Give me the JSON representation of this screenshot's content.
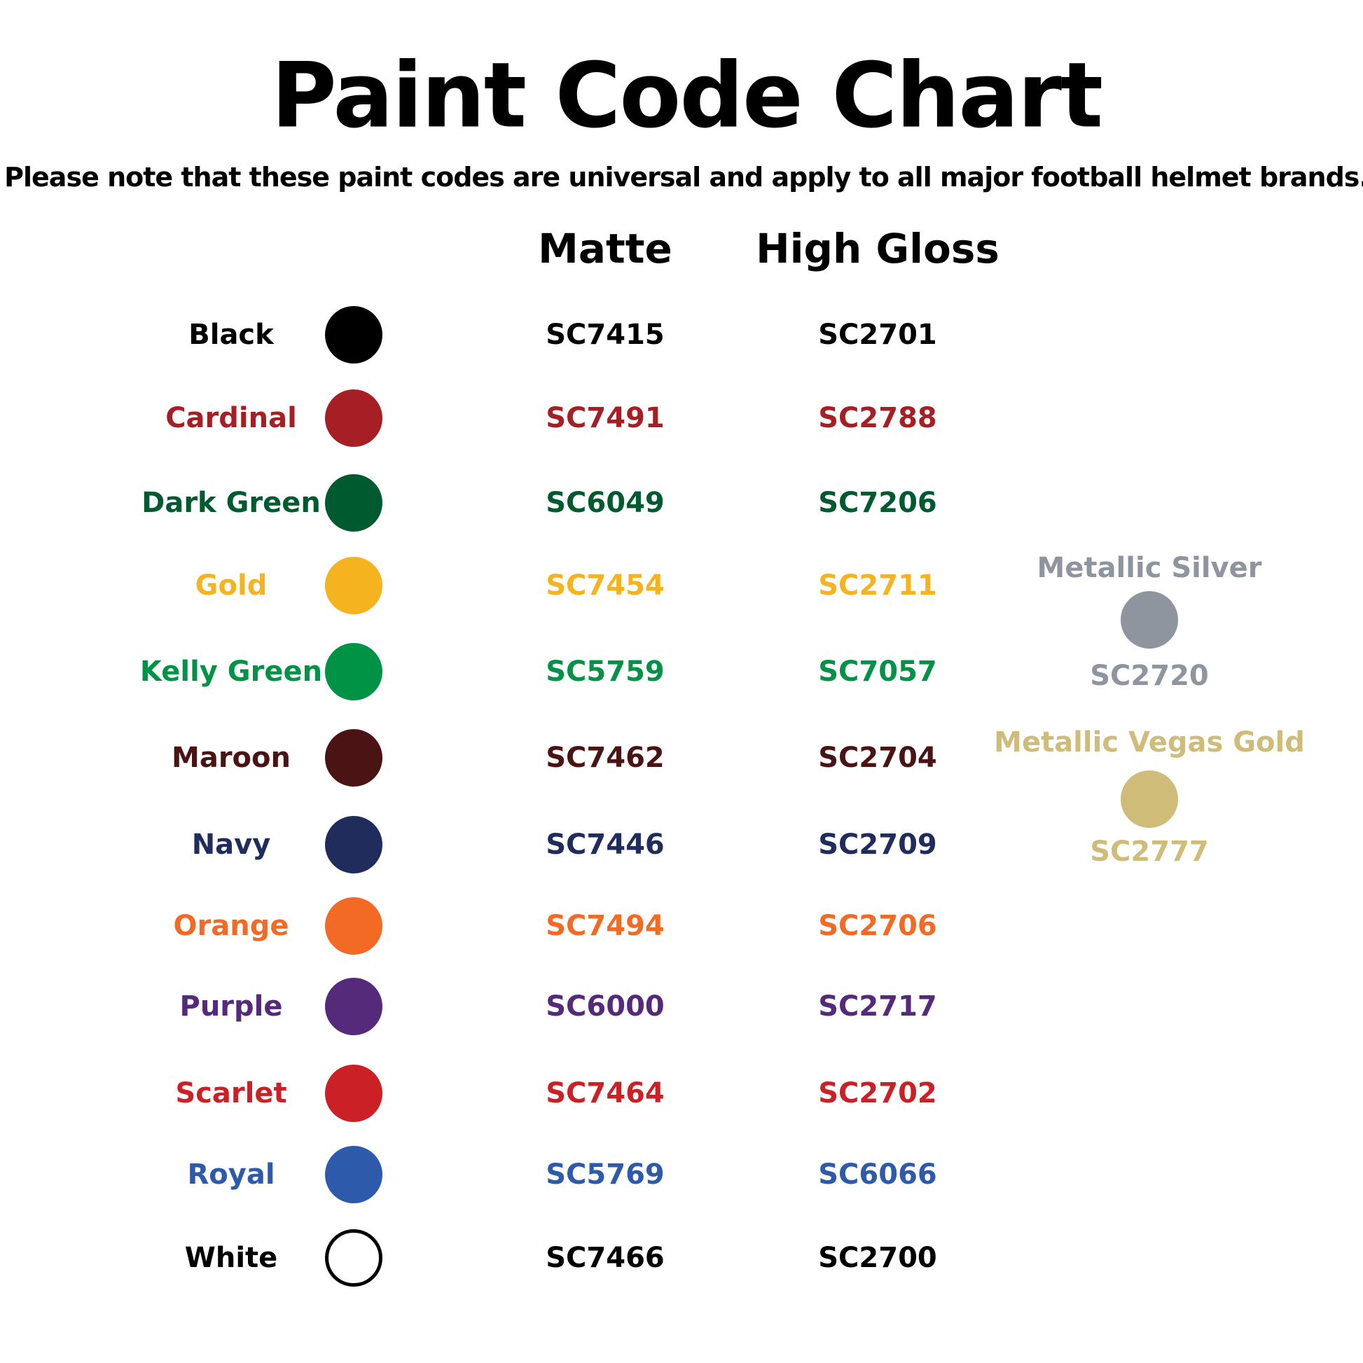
{
  "title": "Paint Code Chart",
  "subtitle": "Please note that these paint codes are universal and apply to all major football helmet brands.",
  "headers": {
    "matte": "Matte",
    "gloss": "High Gloss"
  },
  "colors": [
    {
      "name": "Black",
      "color": "#000000",
      "text_color": "#000000",
      "matte": "SC7415",
      "gloss": "SC2701"
    },
    {
      "name": "Cardinal",
      "color": "#A51F24",
      "text_color": "#A51F24",
      "matte": "SC7491",
      "gloss": "SC2788"
    },
    {
      "name": "Dark Green",
      "color": "#005A30",
      "text_color": "#005A30",
      "matte": "SC6049",
      "gloss": "SC7206"
    },
    {
      "name": "Gold",
      "color": "#F5B31F",
      "text_color": "#F5B31F",
      "matte": "SC7454",
      "gloss": "SC2711"
    },
    {
      "name": "Kelly Green",
      "color": "#009245",
      "text_color": "#009245",
      "matte": "SC5759",
      "gloss": "SC7057"
    },
    {
      "name": "Maroon",
      "color": "#4A1414",
      "text_color": "#4A1414",
      "matte": "SC7462",
      "gloss": "SC2704"
    },
    {
      "name": "Navy",
      "color": "#1F2C5C",
      "text_color": "#1F2C5C",
      "matte": "SC7446",
      "gloss": "SC2709"
    },
    {
      "name": "Orange",
      "color": "#F26A23",
      "text_color": "#F26A23",
      "matte": "SC7494",
      "gloss": "SC2706"
    },
    {
      "name": "Purple",
      "color": "#562A7A",
      "text_color": "#562A7A",
      "matte": "SC6000",
      "gloss": "SC2717"
    },
    {
      "name": "Scarlet",
      "color": "#CC2027",
      "text_color": "#CC2027",
      "matte": "SC7464",
      "gloss": "SC2702"
    },
    {
      "name": "Royal",
      "color": "#2E5AAC",
      "text_color": "#2E5AAC",
      "matte": "SC5769",
      "gloss": "SC6066"
    },
    {
      "name": "White",
      "color": "#FFFFFF",
      "text_color": "#000000",
      "matte": "SC7466",
      "gloss": "SC2700"
    }
  ],
  "metallics": [
    {
      "name": "Metallic Silver",
      "color": "#8F959E",
      "code": "SC2720"
    },
    {
      "name": "Metallic Vegas Gold",
      "color": "#CFBC78",
      "code": "SC2777"
    }
  ]
}
